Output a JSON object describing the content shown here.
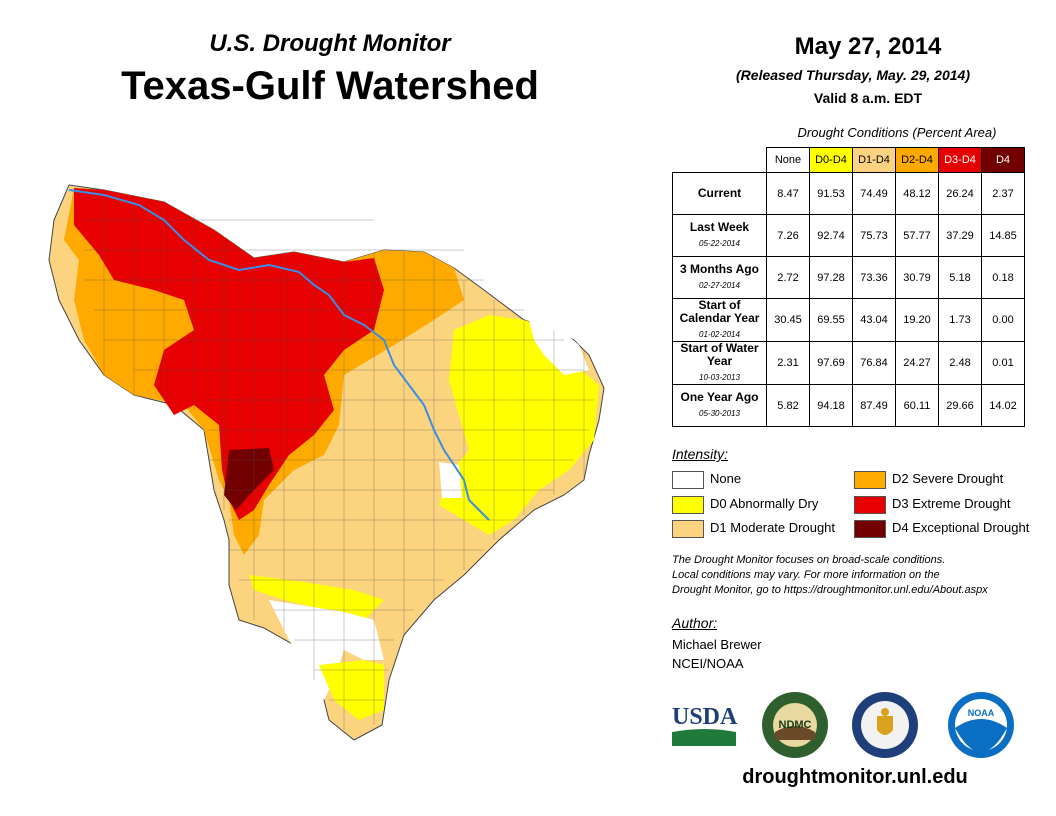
{
  "header": {
    "subtitle": "U.S. Drought Monitor",
    "title": "Texas-Gulf Watershed",
    "date": "May 27, 2014",
    "released": "(Released Thursday, May. 29, 2014)",
    "valid": "Valid 8 a.m. EDT"
  },
  "table": {
    "caption": "Drought Conditions (Percent Area)",
    "columns": [
      {
        "label": "None",
        "bg": "#ffffff",
        "fg": "#000000"
      },
      {
        "label": "D0-D4",
        "bg": "#ffff00",
        "fg": "#000000"
      },
      {
        "label": "D1-D4",
        "bg": "#fcd37f",
        "fg": "#000000"
      },
      {
        "label": "D2-D4",
        "bg": "#ffaa00",
        "fg": "#000000"
      },
      {
        "label": "D3-D4",
        "bg": "#e60000",
        "fg": "#ffffff"
      },
      {
        "label": "D4",
        "bg": "#730000",
        "fg": "#ffffff"
      }
    ],
    "rows": [
      {
        "label": "Current",
        "date": "",
        "values": [
          "8.47",
          "91.53",
          "74.49",
          "48.12",
          "26.24",
          "2.37"
        ]
      },
      {
        "label": "Last Week",
        "date": "05-22-2014",
        "values": [
          "7.26",
          "92.74",
          "75.73",
          "57.77",
          "37.29",
          "14.85"
        ]
      },
      {
        "label": "3 Months Ago",
        "date": "02-27-2014",
        "values": [
          "2.72",
          "97.28",
          "73.36",
          "30.79",
          "5.18",
          "0.18"
        ]
      },
      {
        "label": "Start of Calendar Year",
        "date": "01-02-2014",
        "values": [
          "30.45",
          "69.55",
          "43.04",
          "19.20",
          "1.73",
          "0.00"
        ]
      },
      {
        "label": "Start of Water Year",
        "date": "10-03-2013",
        "values": [
          "2.31",
          "97.69",
          "76.84",
          "24.27",
          "2.48",
          "0.01"
        ]
      },
      {
        "label": "One Year Ago",
        "date": "05-30-2013",
        "values": [
          "5.82",
          "94.18",
          "87.49",
          "60.11",
          "29.66",
          "14.02"
        ]
      }
    ]
  },
  "legend": {
    "title": "Intensity:",
    "items": [
      {
        "label": "None",
        "color": "#ffffff"
      },
      {
        "label": "D0 Abnormally Dry",
        "color": "#ffff00"
      },
      {
        "label": "D1 Moderate Drought",
        "color": "#fcd37f"
      },
      {
        "label": "D2 Severe Drought",
        "color": "#ffaa00"
      },
      {
        "label": "D3 Extreme Drought",
        "color": "#e60000"
      },
      {
        "label": "D4 Exceptional Drought",
        "color": "#730000"
      }
    ]
  },
  "note": {
    "line1": "The Drought Monitor focuses on broad-scale conditions.",
    "line2": "Local conditions may vary. For more information on the",
    "line3": "Drought Monitor, go to https://droughtmonitor.unl.edu/About.aspx"
  },
  "author": {
    "title": "Author:",
    "name": "Michael Brewer",
    "org": "NCEI/NOAA"
  },
  "logos": {
    "usda": "USDA",
    "ndmc": "NDMC",
    "noaa": "NOAA"
  },
  "website": "droughtmonitor.unl.edu",
  "colors": {
    "none": "#ffffff",
    "d0": "#ffff00",
    "d1": "#fcd37f",
    "d2": "#ffaa00",
    "d3": "#e60000",
    "d4": "#730000",
    "river": "#3a8ee6"
  }
}
